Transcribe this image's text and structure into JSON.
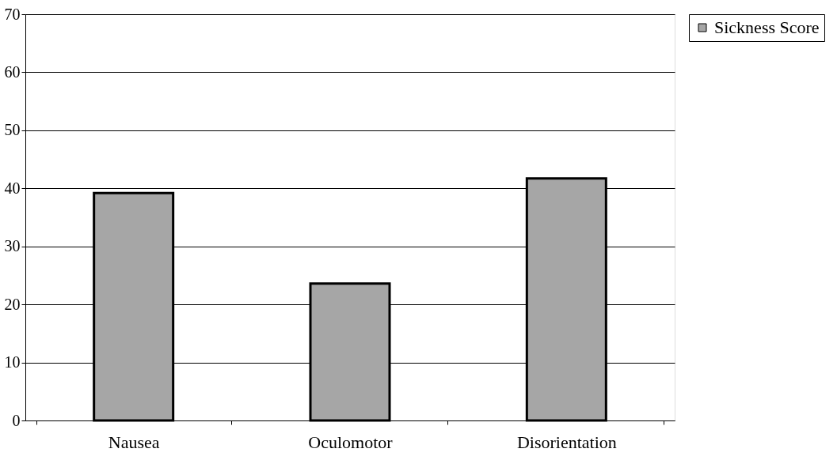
{
  "chart_data": {
    "type": "bar",
    "categories": [
      "Nausea",
      "Oculomotor",
      "Disorientation"
    ],
    "series": [
      {
        "name": "Sickness Score",
        "color": "#a6a6a6",
        "values": [
          39.2,
          23.6,
          41.7
        ]
      }
    ],
    "ylim": [
      0,
      70
    ],
    "yticks": [
      0,
      10,
      20,
      30,
      40,
      50,
      60,
      70
    ],
    "grid": "y",
    "legend": "right"
  }
}
